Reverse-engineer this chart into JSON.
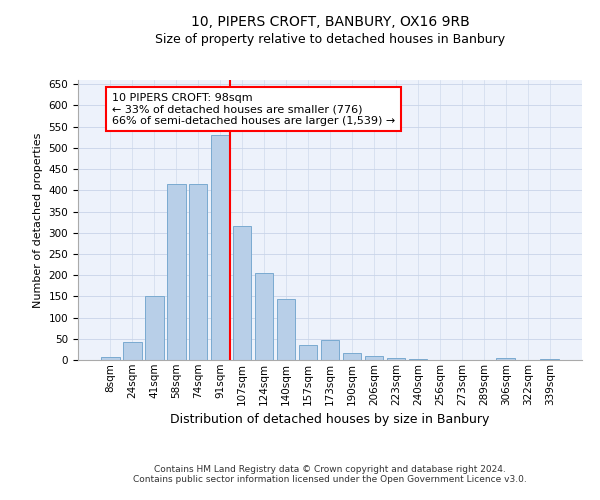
{
  "title1": "10, PIPERS CROFT, BANBURY, OX16 9RB",
  "title2": "Size of property relative to detached houses in Banbury",
  "xlabel": "Distribution of detached houses by size in Banbury",
  "ylabel": "Number of detached properties",
  "categories": [
    "8sqm",
    "24sqm",
    "41sqm",
    "58sqm",
    "74sqm",
    "91sqm",
    "107sqm",
    "124sqm",
    "140sqm",
    "157sqm",
    "173sqm",
    "190sqm",
    "206sqm",
    "223sqm",
    "240sqm",
    "256sqm",
    "273sqm",
    "289sqm",
    "306sqm",
    "322sqm",
    "339sqm"
  ],
  "values": [
    8,
    43,
    150,
    415,
    415,
    530,
    315,
    204,
    143,
    35,
    48,
    16,
    9,
    5,
    2,
    1,
    0,
    0,
    5,
    0,
    2
  ],
  "bar_color": "#b8cfe8",
  "bar_edge_color": "#7aaad0",
  "annotation_text": "10 PIPERS CROFT: 98sqm\n← 33% of detached houses are smaller (776)\n66% of semi-detached houses are larger (1,539) →",
  "annotation_box_color": "white",
  "annotation_box_edge_color": "red",
  "vline_color": "red",
  "footer": "Contains HM Land Registry data © Crown copyright and database right 2024.\nContains public sector information licensed under the Open Government Licence v3.0.",
  "ylim": [
    0,
    660
  ],
  "yticks": [
    0,
    50,
    100,
    150,
    200,
    250,
    300,
    350,
    400,
    450,
    500,
    550,
    600,
    650
  ],
  "bg_color": "#edf2fb",
  "grid_color": "#c8d4e8",
  "title1_fontsize": 10,
  "title2_fontsize": 9,
  "ylabel_fontsize": 8,
  "xlabel_fontsize": 9,
  "tick_fontsize": 7.5,
  "footer_fontsize": 6.5,
  "annotation_fontsize": 8
}
